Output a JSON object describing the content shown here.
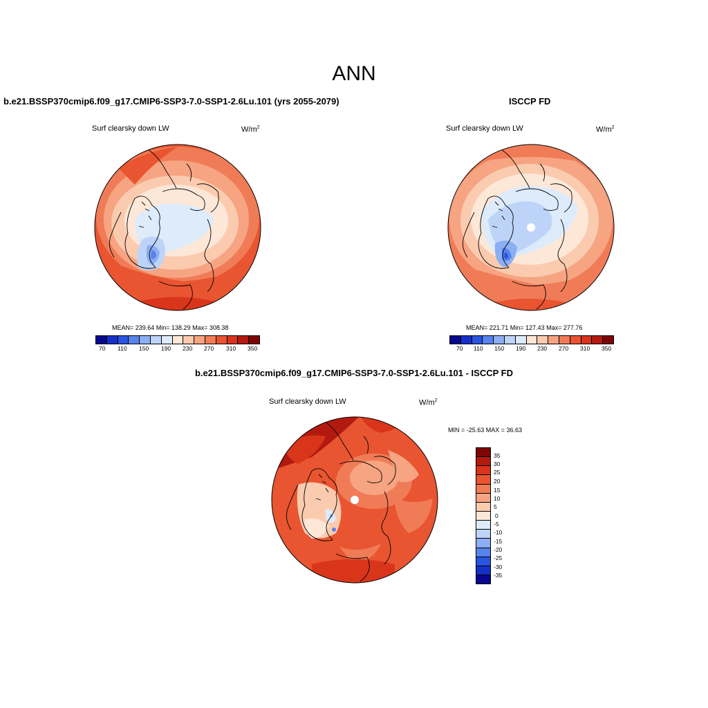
{
  "title": "ANN",
  "panels": {
    "model": {
      "title": "b.e21.BSSP370cmip6.f09_g17.CMIP6-SSP3-7.0-SSP1-2.6Lu.101 (yrs 2055-2079)",
      "variable": "Surf clearsky down LW",
      "units_base": "W/m",
      "units_exp": "2",
      "stats": "MEAN= 239.64  Min= 138.29  Max= 308.38",
      "stats_values": {
        "mean": 239.64,
        "min": 138.29,
        "max": 308.38
      }
    },
    "obs": {
      "title": "ISCCP FD",
      "variable": "Surf clearsky down LW",
      "units_base": "W/m",
      "units_exp": "2",
      "stats": "MEAN= 221.71  Min= 127.43  Max= 277.76",
      "stats_values": {
        "mean": 221.71,
        "min": 127.43,
        "max": 277.76
      }
    },
    "diff": {
      "title": "b.e21.BSSP370cmip6.f09_g17.CMIP6-SSP3-7.0-SSP1-2.6Lu.101 - ISCCP FD",
      "variable": "Surf clearsky down LW",
      "units_base": "W/m",
      "units_exp": "2",
      "stats": "MIN = -25.63 MAX =  36.63",
      "stats_values": {
        "min": -25.63,
        "max": 36.63
      }
    }
  },
  "colorbars": {
    "abs_colors": [
      "#08088f",
      "#1530c8",
      "#2b55e0",
      "#5683ec",
      "#8caef2",
      "#bdd4f8",
      "#ddebfb",
      "#fde8d8",
      "#fbcbb0",
      "#f6a482",
      "#f07c57",
      "#e85530",
      "#d9351b",
      "#b31a0f",
      "#7d0605"
    ],
    "abs_labels": [
      "70",
      "110",
      "150",
      "190",
      "230",
      "270",
      "310",
      "350"
    ],
    "diff_colors": [
      "#7d0605",
      "#b31a0f",
      "#d9351b",
      "#e85530",
      "#f07c57",
      "#f6a482",
      "#fbcbb0",
      "#fde8d8",
      "#ddebfb",
      "#bdd4f8",
      "#8caef2",
      "#5683ec",
      "#2b55e0",
      "#1530c8",
      "#08088f"
    ],
    "diff_labels": [
      "35",
      "30",
      "25",
      "20",
      "15",
      "10",
      "5",
      "0",
      "-5",
      "-10",
      "-15",
      "-20",
      "-25",
      "-30",
      "-35"
    ]
  }
}
